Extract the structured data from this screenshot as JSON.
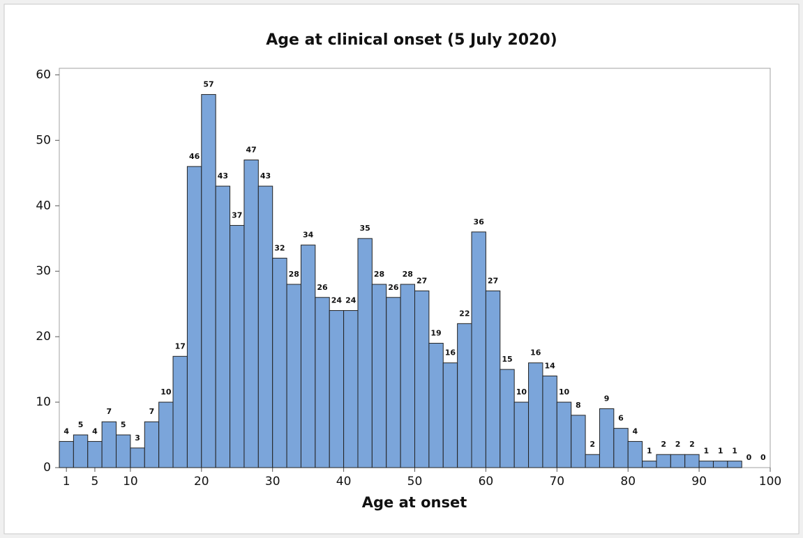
{
  "chart_data": {
    "type": "histogram",
    "title": "Age at clinical onset (5 July 2020)",
    "x_label": "Age at onset",
    "bins": [
      0,
      2,
      4,
      6,
      8,
      10,
      12,
      14,
      16,
      18,
      20,
      22,
      24,
      26,
      28,
      30,
      32,
      34,
      36,
      38,
      40,
      42,
      44,
      46,
      48,
      50,
      52,
      54,
      56,
      58,
      60,
      62,
      64,
      66,
      68,
      70,
      72,
      74,
      76,
      78,
      80,
      82,
      84,
      86,
      88,
      90,
      92,
      94,
      96,
      98,
      100
    ],
    "values": [
      4,
      5,
      4,
      7,
      5,
      3,
      7,
      10,
      17,
      46,
      57,
      43,
      37,
      47,
      43,
      32,
      28,
      34,
      26,
      24,
      24,
      35,
      28,
      26,
      28,
      27,
      19,
      16,
      22,
      36,
      27,
      15,
      10,
      16,
      14,
      10,
      8,
      2,
      9,
      6,
      4,
      1,
      2,
      2,
      2,
      1,
      1,
      1,
      0,
      0
    ],
    "color": "#7ba5da",
    "xlim": [
      0,
      100
    ],
    "xticks": [
      1,
      5,
      10,
      20,
      30,
      40,
      50,
      60,
      70,
      80,
      90,
      100
    ],
    "ylim": [
      0,
      61
    ],
    "yticks": [
      0,
      10,
      20,
      30,
      40,
      50,
      60
    ]
  }
}
